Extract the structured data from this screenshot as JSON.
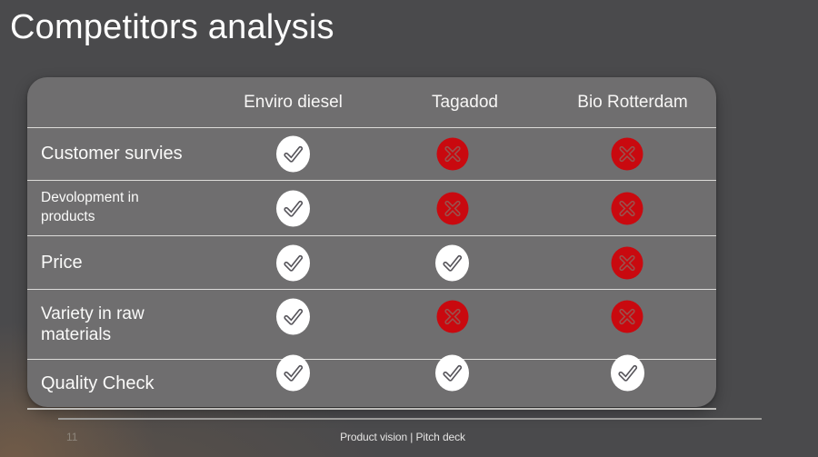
{
  "slide": {
    "title": "Competitors analysis",
    "page_number": "11",
    "footer_text": "Product vision | Pitch deck"
  },
  "table": {
    "columns": [
      "Enviro diesel",
      "Tagadod",
      "Bio Rotterdam"
    ],
    "rows": [
      {
        "label": "Customer survies",
        "values": [
          "check",
          "cross",
          "cross"
        ]
      },
      {
        "label": "Devolopment in\nproducts",
        "values": [
          "check",
          "cross",
          "cross"
        ]
      },
      {
        "label": "Price",
        "values": [
          "check",
          "check",
          "cross"
        ]
      },
      {
        "label": "Variety in raw\nmaterials",
        "values": [
          "check",
          "cross",
          "cross"
        ]
      },
      {
        "label": "Quality Check",
        "values": [
          "check",
          "check",
          "check"
        ]
      }
    ]
  },
  "icons": {
    "check": "check-icon",
    "cross": "cross-icon"
  },
  "colors": {
    "background": "#4a4a4c",
    "card": "#6f6e6f",
    "separator": "#dcdbd9",
    "title": "#fdfdfd",
    "check_circle": "#ffffff",
    "check_mark": "#56545a",
    "cross_circle": "#c9090f",
    "cross_mark": "#9a524e"
  }
}
